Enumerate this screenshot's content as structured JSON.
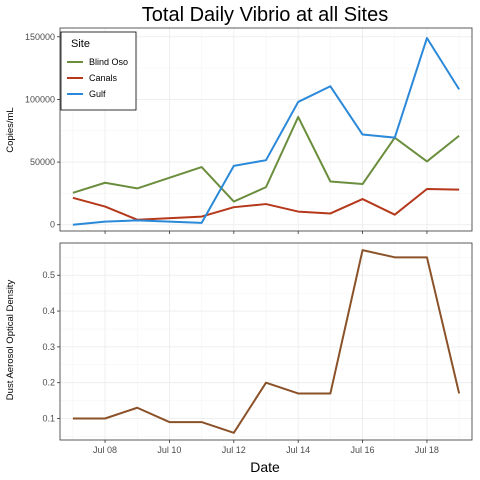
{
  "chart_data": [
    {
      "type": "line",
      "title": "Total Daily Vibrio at all Sites",
      "ylabel": "Copies/mL",
      "xlabel": "",
      "x": [
        "Jul 07",
        "Jul 08",
        "Jul 09",
        "Jul 11",
        "Jul 12",
        "Jul 13",
        "Jul 14",
        "Jul 15",
        "Jul 16",
        "Jul 17",
        "Jul 18",
        "Jul 19"
      ],
      "xlim": [
        "Jul 06.6",
        "Jul 19.4"
      ],
      "ylim": [
        -5000,
        157000
      ],
      "y_ticks": [
        0,
        50000,
        100000,
        150000
      ],
      "y_tick_labels": [
        "0",
        "50000",
        "100000",
        "150000"
      ],
      "legend": {
        "title": "Site",
        "placement": "top-left"
      },
      "grid": true,
      "series": [
        {
          "name": "Blind Oso",
          "color": "#6b8e3e",
          "values": [
            25500,
            33500,
            29000,
            46000,
            18500,
            30000,
            86000,
            34500,
            32500,
            69500,
            50500,
            71000
          ]
        },
        {
          "name": "Canals",
          "color": "#b5381a",
          "values": [
            21500,
            14500,
            4000,
            6500,
            14000,
            16500,
            10500,
            9000,
            20500,
            8000,
            28500,
            28000
          ]
        },
        {
          "name": "Gulf",
          "color": "#2b89d9",
          "values": [
            0,
            2500,
            3500,
            1500,
            47000,
            51500,
            98000,
            110500,
            72000,
            69500,
            149000,
            108000
          ]
        }
      ]
    },
    {
      "type": "line",
      "title": "",
      "ylabel": "Dust Aerosol Optical Density",
      "xlabel": "Date",
      "x": [
        "Jul 07",
        "Jul 08",
        "Jul 09",
        "Jul 10",
        "Jul 11",
        "Jul 12",
        "Jul 13",
        "Jul 14",
        "Jul 15",
        "Jul 16",
        "Jul 17",
        "Jul 18",
        "Jul 19"
      ],
      "xlim": [
        "Jul 06.6",
        "Jul 19.4"
      ],
      "ylim": [
        0.04,
        0.59
      ],
      "y_ticks": [
        0.1,
        0.2,
        0.3,
        0.4,
        0.5
      ],
      "y_tick_labels": [
        "0.1",
        "0.2",
        "0.3",
        "0.4",
        "0.5"
      ],
      "x_tick_labels": [
        "Jul 08",
        "Jul 10",
        "Jul 12",
        "Jul 14",
        "Jul 16",
        "Jul 18"
      ],
      "grid": true,
      "series": [
        {
          "color": "#8b5129",
          "values": [
            0.1,
            0.1,
            0.13,
            0.09,
            0.09,
            0.06,
            0.2,
            0.17,
            0.17,
            0.57,
            0.55,
            0.55,
            0.17
          ]
        }
      ]
    }
  ]
}
